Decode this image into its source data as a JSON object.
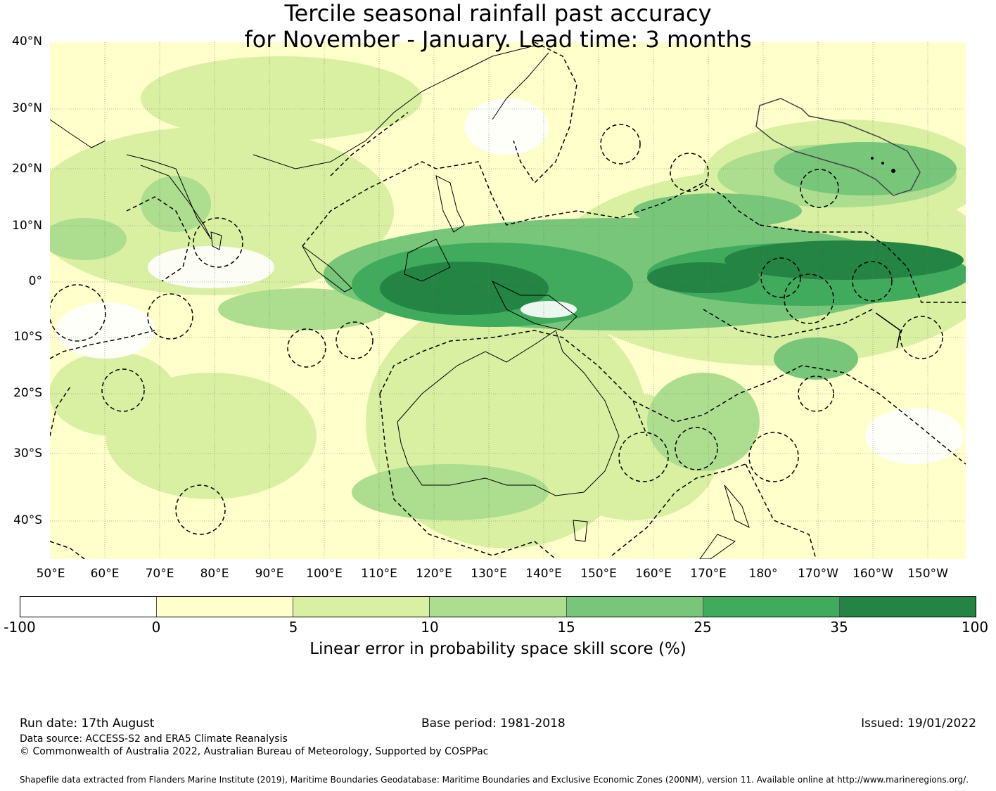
{
  "title_line1": "Tercile seasonal rainfall past accuracy",
  "title_line2": "for November - January. Lead time: 3 months",
  "lat_labels": [
    "40°N",
    "30°N",
    "20°N",
    "10°N",
    "0°",
    "10°S",
    "20°S",
    "30°S",
    "40°S"
  ],
  "lon_labels": [
    "50°E",
    "60°E",
    "70°E",
    "80°E",
    "90°E",
    "100°E",
    "110°E",
    "120°E",
    "130°E",
    "140°E",
    "150°E",
    "160°E",
    "170°E",
    "180°",
    "170°W",
    "160°W",
    "150°W"
  ],
  "colorbar": {
    "ticks": [
      "-100",
      "0",
      "5",
      "10",
      "15",
      "25",
      "35",
      "100"
    ],
    "colors": [
      "#ffffff",
      "#ffffcc",
      "#d9f0a3",
      "#addd8e",
      "#78c679",
      "#41ab5d",
      "#238443"
    ],
    "label": "Linear error in probability space skill score (%)"
  },
  "footer": {
    "run_date": "Run date: 17th August",
    "base_period": "Base period: 1981-2018",
    "issued": "Issued: 19/01/2022",
    "data_source": "Data source: ACCESS-S2 and ERA5 Climate Reanalysis",
    "copyright": "© Commonwealth of Australia 2022, Australian Bureau of Meteorology, Supported by COSPPac",
    "shapefile": "Shapefile data extracted from Flanders Marine Institute (2019), Maritime Boundaries Geodatabase: Maritime Boundaries and Exclusive Economic Zones (200NM), version 11. Available online at http://www.marineregions.org/."
  }
}
